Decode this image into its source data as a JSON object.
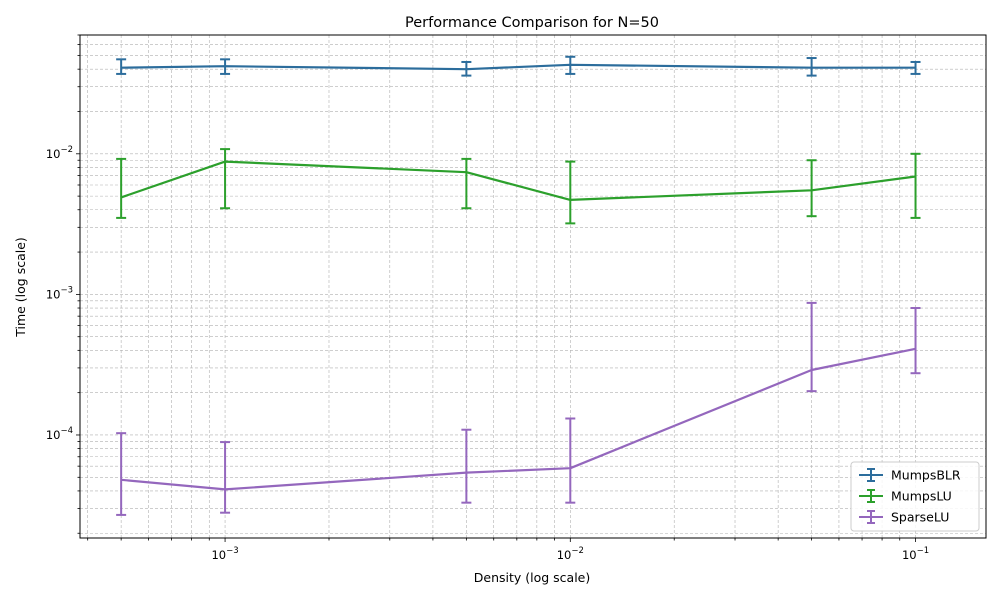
{
  "chart_data": {
    "type": "line",
    "title": "Performance Comparison for N=50",
    "xlabel": "Density (log scale)",
    "ylabel": "Time (log scale)",
    "xscale": "log",
    "yscale": "log",
    "xlim": [
      0.00038,
      0.16
    ],
    "ylim": [
      1.85e-05,
      0.07
    ],
    "grid": "on (major and minor, dashed)",
    "legend_position": "lower right",
    "x": [
      0.0005,
      0.001,
      0.005,
      0.01,
      0.05,
      0.1
    ],
    "x_tick_labels": [
      {
        "value": 0.001,
        "base": "10",
        "exp": "−3"
      },
      {
        "value": 0.01,
        "base": "10",
        "exp": "−2"
      },
      {
        "value": 0.1,
        "base": "10",
        "exp": "−1"
      }
    ],
    "y_tick_labels": [
      {
        "value": 0.0001,
        "base": "10",
        "exp": "−4"
      },
      {
        "value": 0.001,
        "base": "10",
        "exp": "−3"
      },
      {
        "value": 0.01,
        "base": "10",
        "exp": "−2"
      }
    ],
    "series": [
      {
        "name": "MumpsBLR",
        "color": "#2c6d9c",
        "values": [
          0.041,
          0.042,
          0.04,
          0.043,
          0.041,
          0.041
        ],
        "err_low": [
          0.037,
          0.037,
          0.036,
          0.037,
          0.036,
          0.037
        ],
        "err_high": [
          0.047,
          0.047,
          0.045,
          0.049,
          0.048,
          0.045
        ]
      },
      {
        "name": "MumpsLU",
        "color": "#2ca02c",
        "values": [
          0.0049,
          0.0088,
          0.0074,
          0.0047,
          0.0055,
          0.0069
        ],
        "err_low": [
          0.0035,
          0.0041,
          0.0041,
          0.0032,
          0.0036,
          0.0035
        ],
        "err_high": [
          0.0092,
          0.0108,
          0.0092,
          0.0088,
          0.009,
          0.01
        ]
      },
      {
        "name": "SparseLU",
        "color": "#9467bd",
        "values": [
          4.8e-05,
          4.1e-05,
          5.4e-05,
          5.8e-05,
          0.00029,
          0.00041
        ],
        "err_low": [
          2.7e-05,
          2.8e-05,
          3.3e-05,
          3.3e-05,
          0.000205,
          0.000275
        ],
        "err_high": [
          0.000103,
          8.9e-05,
          0.000109,
          0.000131,
          0.00087,
          0.0008
        ]
      }
    ]
  }
}
